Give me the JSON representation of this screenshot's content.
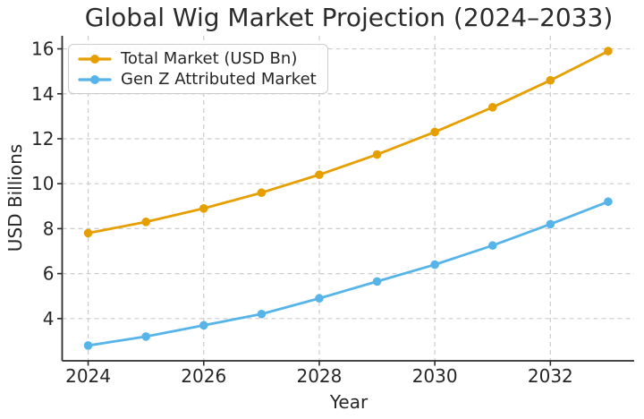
{
  "figure": {
    "background": "#ffffff"
  },
  "chart_data": {
    "type": "line",
    "title": "Global Wig Market Projection (2024–2033)",
    "xlabel": "Year",
    "ylabel": "USD Billions",
    "x": [
      2024,
      2025,
      2026,
      2027,
      2028,
      2029,
      2030,
      2031,
      2032,
      2033
    ],
    "series": [
      {
        "name": "Total Market (USD Bn)",
        "color": "#E69F00",
        "values": [
          7.8,
          8.3,
          8.9,
          9.6,
          10.4,
          11.3,
          12.3,
          13.4,
          14.6,
          15.9
        ]
      },
      {
        "name": "Gen Z Attributed Market",
        "color": "#56B4E9",
        "values": [
          2.8,
          3.2,
          3.7,
          4.2,
          4.9,
          5.65,
          6.4,
          7.25,
          8.2,
          9.2
        ]
      }
    ],
    "xticks": [
      2024,
      2026,
      2028,
      2030,
      2032
    ],
    "yticks": [
      4,
      6,
      8,
      10,
      12,
      14,
      16
    ],
    "xlim": [
      2023.55,
      2033.45
    ],
    "ylim": [
      2.12,
      16.58
    ],
    "grid": true,
    "grid_color": "#cccccc",
    "axis_color": "#2b2b2b",
    "text_color": "#262626",
    "legend": {
      "position": "upper-left",
      "border_color": "#cccccc",
      "background": "#ffffff"
    }
  }
}
